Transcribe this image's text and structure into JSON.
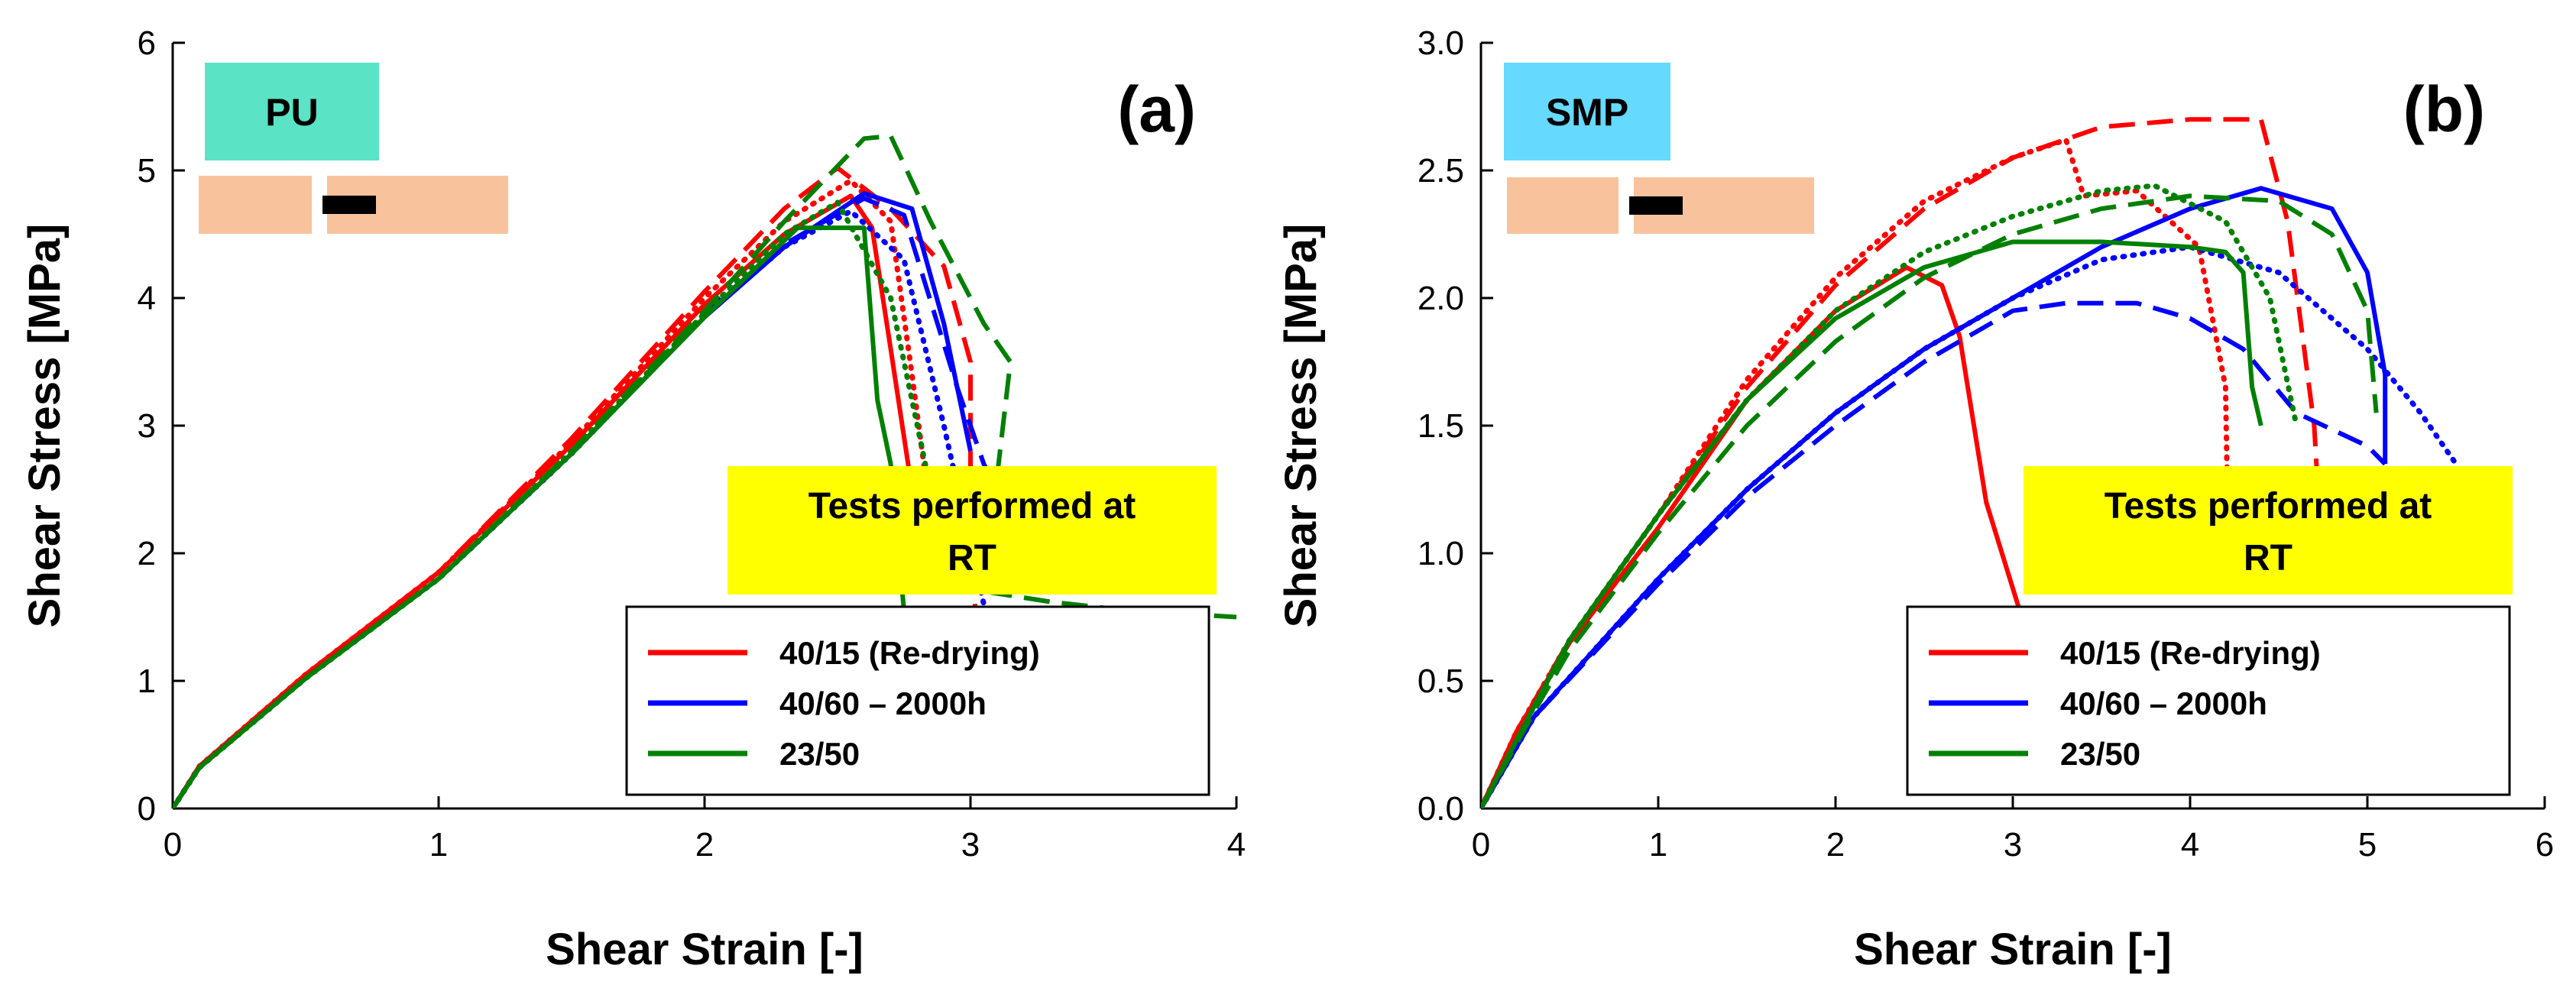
{
  "chart_data": [
    {
      "type": "line",
      "panel_label": "(a)",
      "badge": "PU",
      "badge_color": "#5ae3c4",
      "note": [
        "Tests performed at",
        "RT"
      ],
      "note_color": "#ffff00",
      "xlabel": "Shear Strain [-]",
      "ylabel": "Shear Stress [MPa]",
      "xlim": [
        0,
        4
      ],
      "ylim": [
        0,
        6
      ],
      "xticks": [
        0,
        1,
        2,
        3,
        4
      ],
      "yticks": [
        0,
        1,
        2,
        3,
        4,
        5,
        6
      ],
      "ytick_decimals": 0,
      "legend": [
        {
          "label": "40/15 (Re-drying)",
          "color": "#ff0000"
        },
        {
          "label": "40/60 – 2000h",
          "color": "#0000ff"
        },
        {
          "label": "23/50",
          "color": "#008000"
        }
      ],
      "series": [
        {
          "name": "40/15 (Re-drying)",
          "style": "solid",
          "color": "#ff0000",
          "points": [
            [
              0,
              0
            ],
            [
              0.1,
              0.33
            ],
            [
              0.5,
              1.05
            ],
            [
              1,
              1.85
            ],
            [
              1.5,
              2.85
            ],
            [
              2,
              3.95
            ],
            [
              2.3,
              4.5
            ],
            [
              2.55,
              4.8
            ],
            [
              2.63,
              4.55
            ],
            [
              2.7,
              3.6
            ],
            [
              2.78,
              2.5
            ]
          ]
        },
        {
          "name": "40/15 (Re-drying)",
          "style": "dashed",
          "color": "#ff0000",
          "points": [
            [
              0,
              0
            ],
            [
              0.1,
              0.33
            ],
            [
              0.5,
              1.05
            ],
            [
              1,
              1.85
            ],
            [
              1.5,
              2.9
            ],
            [
              2,
              4.05
            ],
            [
              2.3,
              4.7
            ],
            [
              2.5,
              5.02
            ],
            [
              2.7,
              4.7
            ],
            [
              2.9,
              4.25
            ],
            [
              3.0,
              3.5
            ],
            [
              3.0,
              2.6
            ],
            [
              3.02,
              1.4
            ]
          ]
        },
        {
          "name": "40/15 (Re-drying)",
          "style": "dotted",
          "color": "#ff0000",
          "points": [
            [
              0,
              0
            ],
            [
              0.1,
              0.33
            ],
            [
              0.5,
              1.05
            ],
            [
              1,
              1.85
            ],
            [
              1.5,
              2.87
            ],
            [
              2,
              4.0
            ],
            [
              2.3,
              4.6
            ],
            [
              2.55,
              4.92
            ],
            [
              2.7,
              4.6
            ],
            [
              2.78,
              3.4
            ],
            [
              2.85,
              2.3
            ]
          ]
        },
        {
          "name": "40/60 – 2000h",
          "style": "solid",
          "color": "#0000ff",
          "points": [
            [
              0,
              0
            ],
            [
              0.1,
              0.32
            ],
            [
              0.5,
              1.02
            ],
            [
              1,
              1.8
            ],
            [
              1.5,
              2.78
            ],
            [
              2,
              3.85
            ],
            [
              2.3,
              4.4
            ],
            [
              2.6,
              4.82
            ],
            [
              2.78,
              4.7
            ],
            [
              2.9,
              3.8
            ],
            [
              3.0,
              2.8
            ]
          ]
        },
        {
          "name": "40/60 – 2000h",
          "style": "dashed",
          "color": "#0000ff",
          "points": [
            [
              0,
              0
            ],
            [
              0.1,
              0.32
            ],
            [
              0.5,
              1.02
            ],
            [
              1,
              1.8
            ],
            [
              1.5,
              2.78
            ],
            [
              2,
              3.88
            ],
            [
              2.3,
              4.42
            ],
            [
              2.6,
              4.78
            ],
            [
              2.75,
              4.65
            ],
            [
              2.95,
              3.3
            ],
            [
              3.05,
              2.7
            ],
            [
              3.1,
              2.5
            ]
          ]
        },
        {
          "name": "40/60 – 2000h",
          "style": "dotted",
          "color": "#0000ff",
          "points": [
            [
              0,
              0
            ],
            [
              0.1,
              0.32
            ],
            [
              0.5,
              1.02
            ],
            [
              1,
              1.8
            ],
            [
              1.5,
              2.78
            ],
            [
              2,
              3.86
            ],
            [
              2.3,
              4.4
            ],
            [
              2.55,
              4.68
            ],
            [
              2.75,
              4.3
            ],
            [
              2.9,
              3.0
            ],
            [
              3.05,
              1.6
            ]
          ]
        },
        {
          "name": "23/50",
          "style": "solid",
          "color": "#008000",
          "points": [
            [
              0,
              0
            ],
            [
              0.1,
              0.32
            ],
            [
              0.5,
              1.02
            ],
            [
              1,
              1.8
            ],
            [
              1.5,
              2.78
            ],
            [
              2,
              3.85
            ],
            [
              2.35,
              4.55
            ],
            [
              2.6,
              4.55
            ],
            [
              2.65,
              3.2
            ],
            [
              2.7,
              2.7
            ],
            [
              2.75,
              1.55
            ]
          ]
        },
        {
          "name": "23/50",
          "style": "dashed",
          "color": "#008000",
          "points": [
            [
              0,
              0
            ],
            [
              0.1,
              0.32
            ],
            [
              0.5,
              1.02
            ],
            [
              1,
              1.8
            ],
            [
              1.5,
              2.8
            ],
            [
              2,
              3.9
            ],
            [
              2.3,
              4.6
            ],
            [
              2.6,
              5.25
            ],
            [
              2.7,
              5.27
            ],
            [
              2.85,
              4.6
            ],
            [
              3.05,
              3.8
            ],
            [
              3.15,
              3.5
            ],
            [
              3.1,
              2.6
            ],
            [
              3.0,
              2.2
            ],
            [
              2.9,
              1.75
            ],
            [
              3.3,
              1.62
            ],
            [
              3.6,
              1.55
            ],
            [
              4.0,
              1.5
            ]
          ]
        },
        {
          "name": "23/50",
          "style": "dotted",
          "color": "#008000",
          "points": [
            [
              0,
              0
            ],
            [
              0.1,
              0.32
            ],
            [
              0.5,
              1.02
            ],
            [
              1,
              1.8
            ],
            [
              1.5,
              2.8
            ],
            [
              2,
              3.88
            ],
            [
              2.3,
              4.5
            ],
            [
              2.5,
              4.75
            ],
            [
              2.7,
              4.0
            ],
            [
              2.8,
              3.0
            ],
            [
              2.85,
              2.5
            ]
          ]
        }
      ]
    },
    {
      "type": "line",
      "panel_label": "(b)",
      "badge": "SMP",
      "badge_color": "#66d9ff",
      "note": [
        "Tests performed at",
        "RT"
      ],
      "note_color": "#ffff00",
      "xlabel": "Shear Strain [-]",
      "ylabel": "Shear Stress [MPa]",
      "xlim": [
        0,
        6
      ],
      "ylim": [
        0,
        3.0
      ],
      "xticks": [
        0,
        1,
        2,
        3,
        4,
        5,
        6
      ],
      "yticks": [
        0,
        0.5,
        1.0,
        1.5,
        2.0,
        2.5,
        3.0
      ],
      "ytick_decimals": 1,
      "legend": [
        {
          "label": "40/15 (Re-drying)",
          "color": "#ff0000"
        },
        {
          "label": "40/60 – 2000h",
          "color": "#0000ff"
        },
        {
          "label": "23/50",
          "color": "#008000"
        }
      ],
      "series": [
        {
          "name": "40/15 (Re-drying)",
          "style": "solid",
          "color": "#ff0000",
          "points": [
            [
              0,
              0
            ],
            [
              0.2,
              0.3
            ],
            [
              0.5,
              0.65
            ],
            [
              1,
              1.1
            ],
            [
              1.5,
              1.6
            ],
            [
              2,
              1.95
            ],
            [
              2.4,
              2.12
            ],
            [
              2.6,
              2.05
            ],
            [
              2.7,
              1.85
            ],
            [
              2.85,
              1.2
            ],
            [
              3.05,
              0.75
            ]
          ]
        },
        {
          "name": "40/15 (Re-drying)",
          "style": "dashed",
          "color": "#ff0000",
          "points": [
            [
              0,
              0
            ],
            [
              0.2,
              0.3
            ],
            [
              0.5,
              0.66
            ],
            [
              1,
              1.15
            ],
            [
              1.5,
              1.65
            ],
            [
              2,
              2.05
            ],
            [
              2.5,
              2.35
            ],
            [
              3,
              2.55
            ],
            [
              3.5,
              2.67
            ],
            [
              4,
              2.7
            ],
            [
              4.4,
              2.7
            ],
            [
              4.55,
              2.3
            ],
            [
              4.7,
              1.5
            ],
            [
              4.75,
              0.9
            ]
          ]
        },
        {
          "name": "40/15 (Re-drying)",
          "style": "dotted",
          "color": "#ff0000",
          "points": [
            [
              0,
              0
            ],
            [
              0.2,
              0.3
            ],
            [
              0.5,
              0.66
            ],
            [
              1,
              1.15
            ],
            [
              1.5,
              1.68
            ],
            [
              2,
              2.08
            ],
            [
              2.5,
              2.38
            ],
            [
              3,
              2.55
            ],
            [
              3.3,
              2.62
            ],
            [
              3.4,
              2.4
            ],
            [
              3.7,
              2.42
            ],
            [
              4.05,
              2.2
            ],
            [
              4.2,
              1.65
            ],
            [
              4.22,
              0.85
            ]
          ]
        },
        {
          "name": "40/60 – 2000h",
          "style": "solid",
          "color": "#0000ff",
          "points": [
            [
              0,
              0
            ],
            [
              0.3,
              0.36
            ],
            [
              1,
              0.9
            ],
            [
              1.5,
              1.25
            ],
            [
              2,
              1.55
            ],
            [
              2.5,
              1.8
            ],
            [
              3,
              2.0
            ],
            [
              3.5,
              2.2
            ],
            [
              4,
              2.35
            ],
            [
              4.4,
              2.43
            ],
            [
              4.8,
              2.35
            ],
            [
              5.0,
              2.1
            ],
            [
              5.1,
              1.7
            ],
            [
              5.1,
              1.35
            ]
          ]
        },
        {
          "name": "40/60 – 2000h",
          "style": "dashed",
          "color": "#0000ff",
          "points": [
            [
              0,
              0
            ],
            [
              0.3,
              0.36
            ],
            [
              1,
              0.88
            ],
            [
              1.5,
              1.22
            ],
            [
              2,
              1.5
            ],
            [
              2.5,
              1.75
            ],
            [
              3,
              1.95
            ],
            [
              3.3,
              1.98
            ],
            [
              3.7,
              1.98
            ],
            [
              4,
              1.92
            ],
            [
              4.3,
              1.8
            ],
            [
              4.6,
              1.55
            ],
            [
              5.0,
              1.42
            ],
            [
              5.1,
              1.35
            ]
          ]
        },
        {
          "name": "40/60 – 2000h",
          "style": "dotted",
          "color": "#0000ff",
          "points": [
            [
              0,
              0
            ],
            [
              0.3,
              0.36
            ],
            [
              1,
              0.9
            ],
            [
              1.5,
              1.25
            ],
            [
              2,
              1.55
            ],
            [
              2.5,
              1.8
            ],
            [
              3,
              2.0
            ],
            [
              3.5,
              2.15
            ],
            [
              4,
              2.2
            ],
            [
              4.5,
              2.1
            ],
            [
              5,
              1.8
            ],
            [
              5.3,
              1.55
            ],
            [
              5.5,
              1.35
            ]
          ]
        },
        {
          "name": "23/50",
          "style": "solid",
          "color": "#008000",
          "points": [
            [
              0,
              0
            ],
            [
              0.3,
              0.4
            ],
            [
              0.5,
              0.66
            ],
            [
              1,
              1.15
            ],
            [
              1.5,
              1.6
            ],
            [
              2,
              1.92
            ],
            [
              2.5,
              2.12
            ],
            [
              3,
              2.22
            ],
            [
              3.5,
              2.22
            ],
            [
              4,
              2.2
            ],
            [
              4.2,
              2.18
            ],
            [
              4.3,
              2.1
            ],
            [
              4.35,
              1.65
            ],
            [
              4.4,
              1.5
            ]
          ]
        },
        {
          "name": "23/50",
          "style": "dashed",
          "color": "#008000",
          "points": [
            [
              0,
              0
            ],
            [
              0.3,
              0.38
            ],
            [
              0.5,
              0.62
            ],
            [
              1,
              1.08
            ],
            [
              1.5,
              1.5
            ],
            [
              2,
              1.83
            ],
            [
              2.5,
              2.08
            ],
            [
              3,
              2.25
            ],
            [
              3.5,
              2.35
            ],
            [
              4,
              2.4
            ],
            [
              4.5,
              2.38
            ],
            [
              4.8,
              2.25
            ],
            [
              5.0,
              1.95
            ],
            [
              5.05,
              1.55
            ]
          ]
        },
        {
          "name": "23/50",
          "style": "dotted",
          "color": "#008000",
          "points": [
            [
              0,
              0
            ],
            [
              0.3,
              0.4
            ],
            [
              0.5,
              0.66
            ],
            [
              1,
              1.15
            ],
            [
              1.5,
              1.6
            ],
            [
              2,
              1.95
            ],
            [
              2.5,
              2.18
            ],
            [
              3,
              2.32
            ],
            [
              3.5,
              2.42
            ],
            [
              3.8,
              2.44
            ],
            [
              4.2,
              2.3
            ],
            [
              4.45,
              2.0
            ],
            [
              4.6,
              1.5
            ]
          ]
        }
      ]
    }
  ]
}
